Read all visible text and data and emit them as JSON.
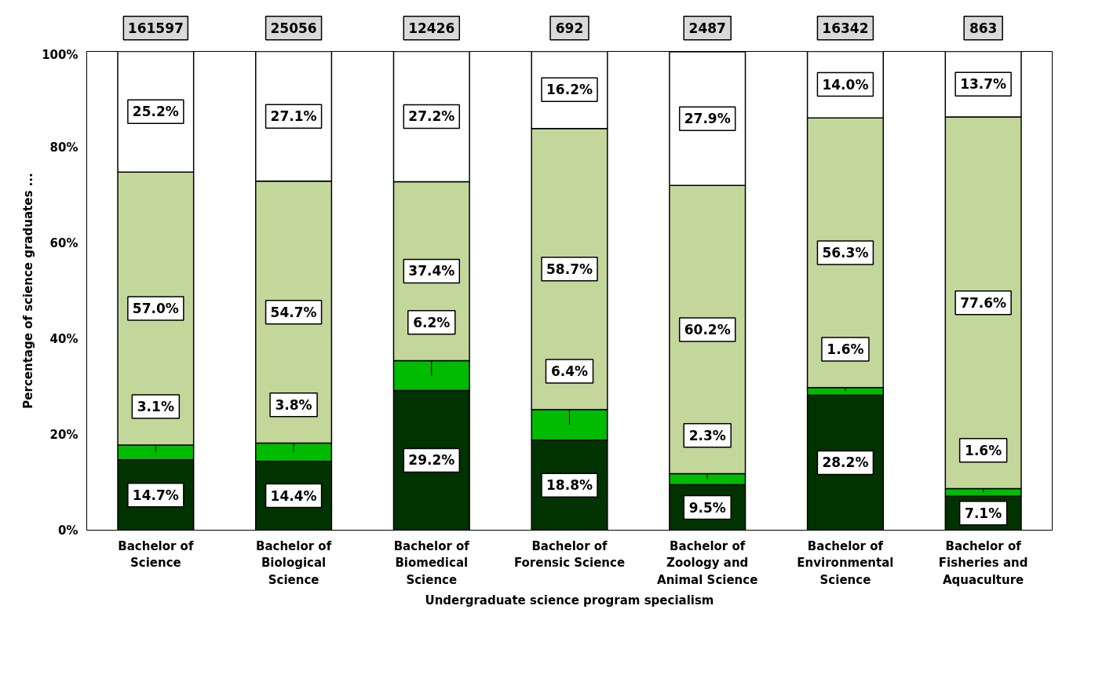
{
  "chart_data": {
    "type": "bar",
    "stacked": true,
    "xlabel": "Undergraduate science program specialism",
    "ylabel": "Percentage of science graduates ...",
    "categories": [
      "Bachelor of Science",
      "Bachelor of Biological Science",
      "Bachelor of Biomedical Science",
      "Bachelor of Forensic Science",
      "Bachelor of Zoology and Animal Science",
      "Bachelor of Environmental Science",
      "Bachelor of Fisheries and Aquaculture"
    ],
    "series": [
      {
        "color": "#003300",
        "values": [
          14.7,
          14.4,
          29.2,
          18.8,
          9.5,
          28.2,
          7.1
        ],
        "value_labels": [
          "14.7%",
          "14.4%",
          "29.2%",
          "18.8%",
          "9.5%",
          "28.2%",
          "7.1%"
        ]
      },
      {
        "color": "#00bb00",
        "values": [
          3.1,
          3.8,
          6.2,
          6.4,
          2.3,
          1.6,
          1.6
        ],
        "value_labels": [
          "3.1%",
          "3.8%",
          "6.2%",
          "6.4%",
          "2.3%",
          "1.6%",
          "1.6%"
        ]
      },
      {
        "color": "#c4d79b",
        "values": [
          57.0,
          54.7,
          37.4,
          58.7,
          60.2,
          56.3,
          77.6
        ],
        "value_labels": [
          "57.0%",
          "54.7%",
          "37.4%",
          "58.7%",
          "60.2%",
          "56.3%",
          "77.6%"
        ]
      },
      {
        "color": "#ffffff",
        "values": [
          25.2,
          27.1,
          27.2,
          16.2,
          27.9,
          14.0,
          13.7
        ],
        "value_labels": [
          "25.2%",
          "27.1%",
          "27.2%",
          "16.2%",
          "27.9%",
          "14.0%",
          "13.7%"
        ]
      }
    ],
    "annotations": [
      "161597",
      "25056",
      "12426",
      "692",
      "2487",
      "16342",
      "863"
    ],
    "ylim": [
      0,
      100
    ],
    "yticks": [
      {
        "value": 0,
        "label": "0%"
      },
      {
        "value": 20,
        "label": "20%"
      },
      {
        "value": 40,
        "label": "40%"
      },
      {
        "value": 60,
        "label": "60%"
      },
      {
        "value": 80,
        "label": "80%"
      },
      {
        "value": 100,
        "label": "100%"
      }
    ],
    "grid": false
  }
}
